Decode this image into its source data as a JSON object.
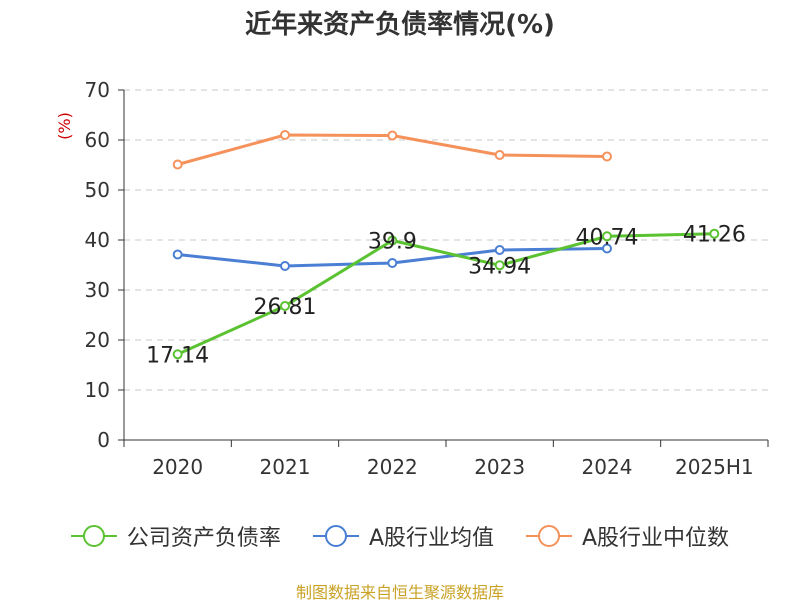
{
  "chart_data": {
    "type": "line",
    "title": "近年来资产负债率情况(%)",
    "ylabel": "(%)",
    "categories": [
      "2020",
      "2021",
      "2022",
      "2023",
      "2024",
      "2025H1"
    ],
    "ylim": [
      0,
      70
    ],
    "yticks": [
      "0",
      "10",
      "20",
      "30",
      "40",
      "50",
      "60",
      "70"
    ],
    "grid": true,
    "legend_position": "bottom",
    "series": [
      {
        "name": "公司资产负债率",
        "color": "#5bc232",
        "values": [
          17.14,
          26.81,
          39.9,
          34.94,
          40.74,
          41.26
        ],
        "labels": [
          "17.14",
          "26.81",
          "39.9",
          "34.94",
          "40.74",
          "41.26"
        ]
      },
      {
        "name": "A股行业均值",
        "color": "#4a7fd4",
        "values": [
          37.1,
          34.8,
          35.4,
          38.0,
          38.3,
          null
        ]
      },
      {
        "name": "A股行业中位数",
        "color": "#f5915a",
        "values": [
          55.1,
          61.0,
          60.9,
          57.0,
          56.7,
          null
        ]
      }
    ],
    "source": "制图数据来自恒生聚源数据库"
  }
}
